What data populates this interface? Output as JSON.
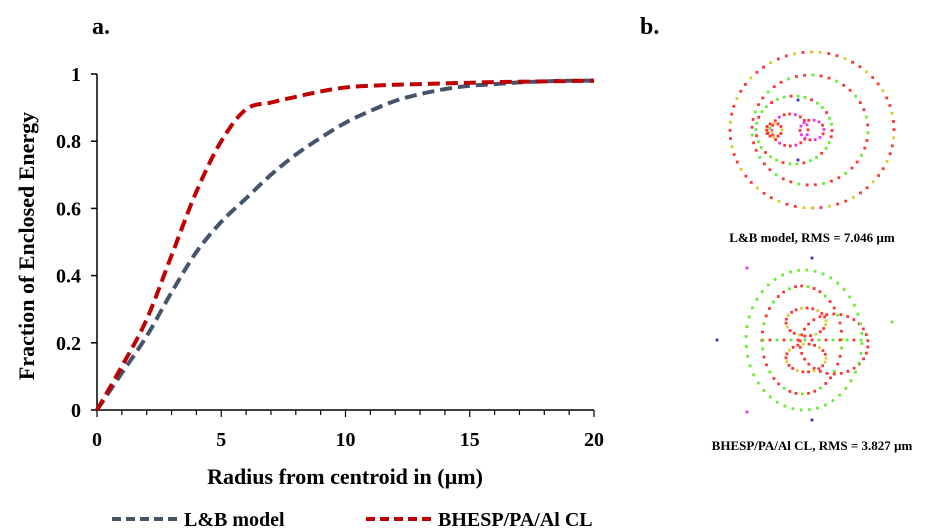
{
  "panels": {
    "a_label": "a.",
    "b_label": "b."
  },
  "chart_data": {
    "type": "line",
    "title": "",
    "xlabel": "Radius from centroid in (µm)",
    "ylabel": "Fraction of Enclosed Energy",
    "xlim": [
      0,
      20
    ],
    "ylim": [
      0,
      1
    ],
    "xticks": [
      "0",
      "5",
      "10",
      "15",
      "20"
    ],
    "yticks": [
      "0",
      "0.2",
      "0.4",
      "0.6",
      "0.8",
      "1"
    ],
    "grid": false,
    "legend_position": "bottom",
    "series": [
      {
        "name": "L&B model",
        "color": "#44546a",
        "dash": "dashed",
        "x": [
          0,
          1,
          2,
          3,
          4,
          5,
          6,
          7,
          8,
          9,
          10,
          11,
          12,
          13,
          14,
          15,
          16,
          17,
          18,
          19,
          20
        ],
        "y": [
          0,
          0.11,
          0.22,
          0.35,
          0.47,
          0.56,
          0.63,
          0.7,
          0.76,
          0.81,
          0.855,
          0.89,
          0.92,
          0.94,
          0.955,
          0.965,
          0.97,
          0.975,
          0.978,
          0.98,
          0.98
        ]
      },
      {
        "name": "BHESP/PA/Al CL",
        "color": "#c00000",
        "dash": "dashed",
        "x": [
          0,
          1,
          2,
          3,
          4,
          5,
          6,
          7,
          8,
          9,
          10,
          11,
          12,
          13,
          14,
          15,
          16,
          17,
          18,
          19,
          20
        ],
        "y": [
          0,
          0.13,
          0.27,
          0.46,
          0.65,
          0.8,
          0.895,
          0.915,
          0.932,
          0.948,
          0.96,
          0.965,
          0.968,
          0.97,
          0.972,
          0.974,
          0.976,
          0.977,
          0.978,
          0.979,
          0.98
        ]
      }
    ]
  },
  "spot_diagrams": [
    {
      "caption": "L&B model, RMS = 7.046 µm"
    },
    {
      "caption": "BHESP/PA/Al CL, RMS = 3.827 µm"
    }
  ],
  "colors": {
    "spot_red": "#ff3333",
    "spot_green": "#66ee33",
    "spot_yellow": "#ddcc33",
    "spot_magenta": "#ee33ee",
    "spot_blue": "#3333cc"
  }
}
